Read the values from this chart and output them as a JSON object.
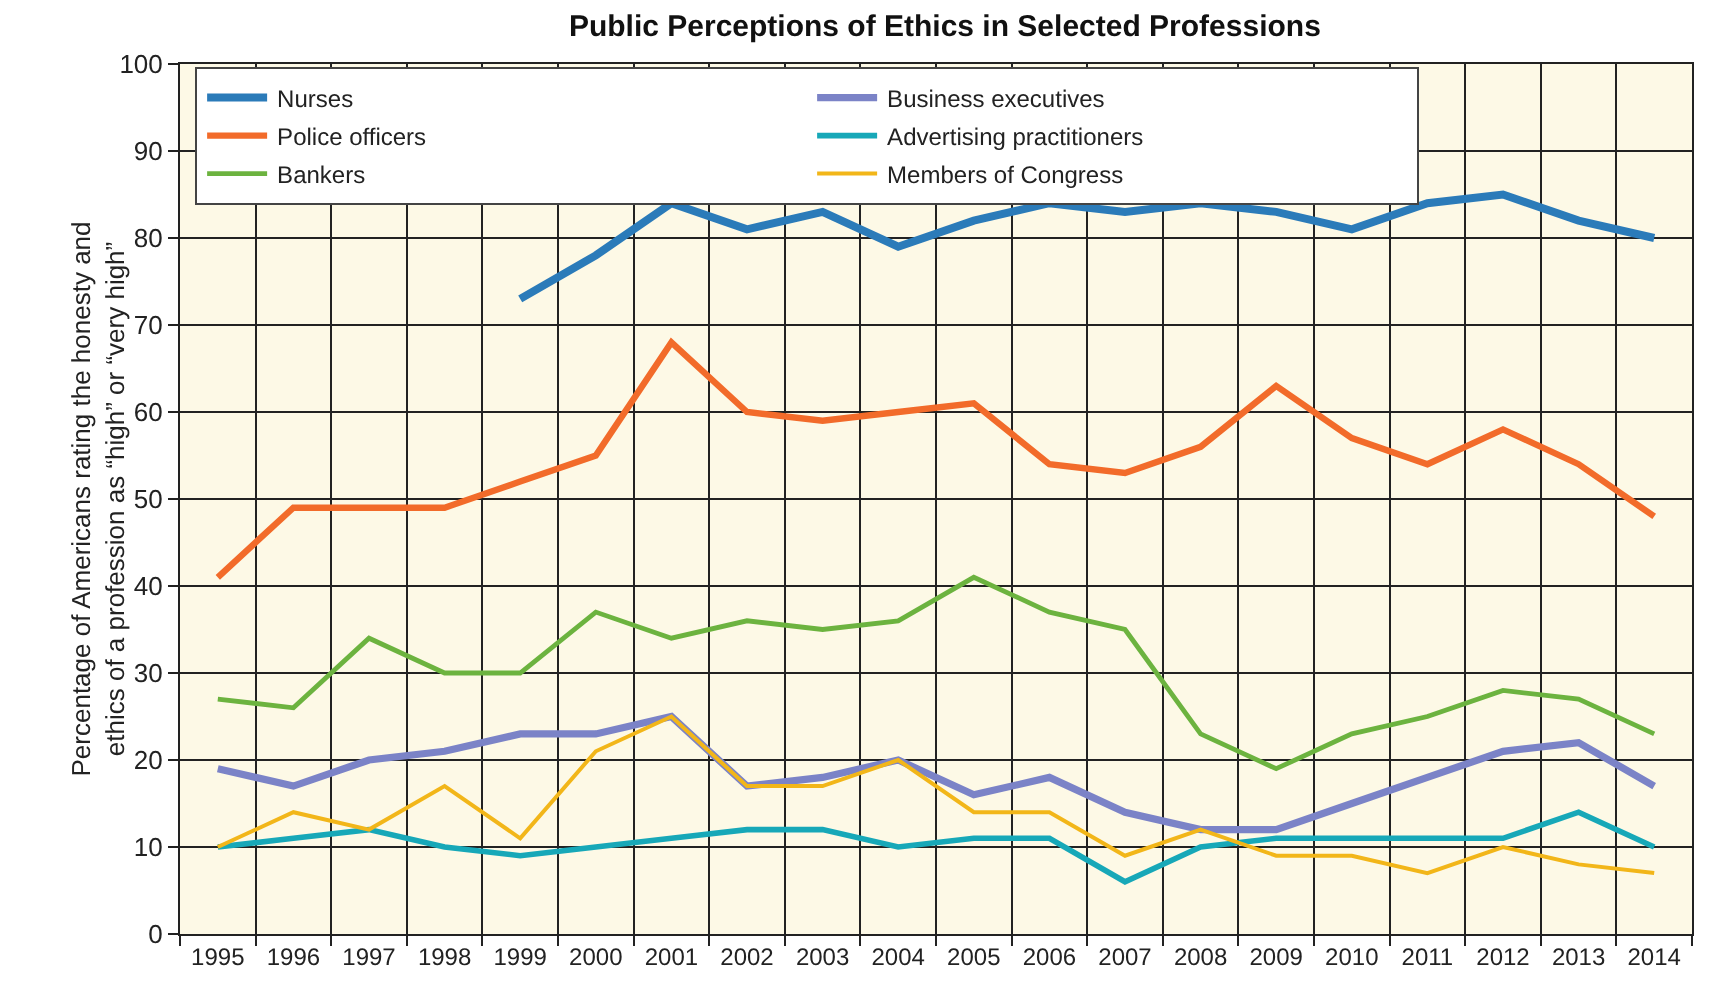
{
  "chart_data": {
    "type": "line",
    "title": "Public Perceptions of Ethics in Selected Professions",
    "ylabel": "Percentage of Americans rating the honesty and ethics of a profession as “high” or “very high”",
    "categories": [
      "1995",
      "1996",
      "1997",
      "1998",
      "1999",
      "2000",
      "2001",
      "2002",
      "2003",
      "2004",
      "2005",
      "2006",
      "2007",
      "2008",
      "2009",
      "2010",
      "2011",
      "2012",
      "2013",
      "2014"
    ],
    "series": [
      {
        "name": "Nurses",
        "color": "#2b7bb9",
        "values": [
          null,
          null,
          null,
          null,
          73,
          78,
          84,
          81,
          83,
          79,
          82,
          84,
          83,
          84,
          83,
          81,
          84,
          85,
          82,
          80
        ]
      },
      {
        "name": "Police officers",
        "color": "#f26b2a",
        "values": [
          41,
          49,
          49,
          49,
          52,
          55,
          68,
          60,
          59,
          60,
          61,
          54,
          53,
          56,
          63,
          57,
          54,
          58,
          54,
          48
        ]
      },
      {
        "name": "Bankers",
        "color": "#6cb33f",
        "values": [
          27,
          26,
          34,
          30,
          30,
          37,
          34,
          36,
          35,
          36,
          41,
          37,
          35,
          23,
          19,
          23,
          25,
          28,
          27,
          23
        ]
      },
      {
        "name": "Business executives",
        "color": "#7b83c7",
        "values": [
          19,
          17,
          20,
          21,
          23,
          23,
          25,
          17,
          18,
          20,
          16,
          18,
          14,
          12,
          12,
          15,
          18,
          21,
          22,
          17
        ]
      },
      {
        "name": "Advertising practitioners",
        "color": "#17a8b8",
        "values": [
          10,
          11,
          12,
          10,
          9,
          10,
          11,
          12,
          12,
          10,
          11,
          11,
          6,
          10,
          11,
          11,
          11,
          11,
          14,
          10
        ]
      },
      {
        "name": "Members of Congress",
        "color": "#f2b619",
        "values": [
          10,
          14,
          12,
          17,
          11,
          21,
          25,
          17,
          17,
          20,
          14,
          14,
          9,
          12,
          9,
          9,
          7,
          10,
          8,
          7
        ]
      }
    ],
    "ylim": [
      0,
      100
    ],
    "yticks": [
      0,
      10,
      20,
      30,
      40,
      50,
      60,
      70,
      80,
      90,
      100
    ],
    "grid": true,
    "legend": "top left",
    "marker": "none",
    "line_style": "solid"
  }
}
